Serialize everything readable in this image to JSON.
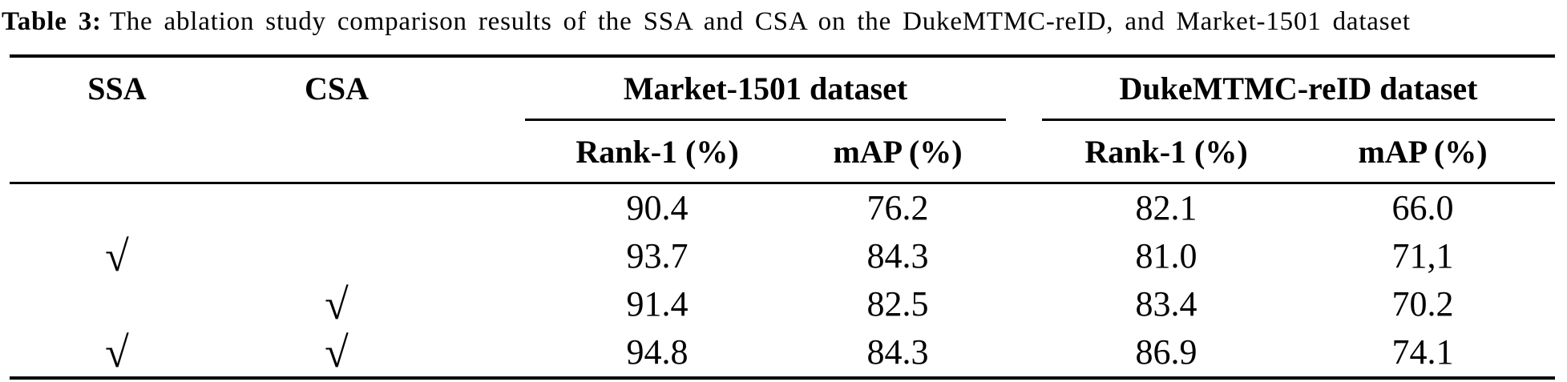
{
  "caption": {
    "label": "Table 3:",
    "text": "The ablation study comparison results of the SSA and CSA on the DukeMTMC-reID, and Market-1501 dataset"
  },
  "table": {
    "checkmark": "√",
    "headers": {
      "ssa": "SSA",
      "csa": "CSA"
    },
    "groups": [
      {
        "label": "Market-1501 dataset",
        "subcols": [
          "Rank-1 (%)",
          "mAP (%)"
        ]
      },
      {
        "label": "DukeMTMC-reID dataset",
        "subcols": [
          "Rank-1 (%)",
          "mAP (%)"
        ]
      }
    ],
    "rows": [
      {
        "ssa": false,
        "csa": false,
        "values": [
          "90.4",
          "76.2",
          "82.1",
          "66.0"
        ]
      },
      {
        "ssa": true,
        "csa": false,
        "values": [
          "93.7",
          "84.3",
          "81.0",
          "71,1"
        ]
      },
      {
        "ssa": false,
        "csa": true,
        "values": [
          "91.4",
          "82.5",
          "83.4",
          "70.2"
        ]
      },
      {
        "ssa": true,
        "csa": true,
        "values": [
          "94.8",
          "84.3",
          "86.9",
          "74.1"
        ]
      }
    ]
  },
  "chart_data": {
    "type": "table",
    "title": "Table 3: The ablation study comparison results of the SSA and CSA on the DukeMTMC-reID, and Market-1501 dataset",
    "columns": [
      "SSA",
      "CSA",
      "Market-1501 Rank-1 (%)",
      "Market-1501 mAP (%)",
      "DukeMTMC-reID Rank-1 (%)",
      "DukeMTMC-reID mAP (%)"
    ],
    "rows": [
      [
        "",
        "",
        "90.4",
        "76.2",
        "82.1",
        "66.0"
      ],
      [
        "√",
        "",
        "93.7",
        "84.3",
        "81.0",
        "71,1"
      ],
      [
        "",
        "√",
        "91.4",
        "82.5",
        "83.4",
        "70.2"
      ],
      [
        "√",
        "√",
        "94.8",
        "84.3",
        "86.9",
        "74.1"
      ]
    ]
  }
}
